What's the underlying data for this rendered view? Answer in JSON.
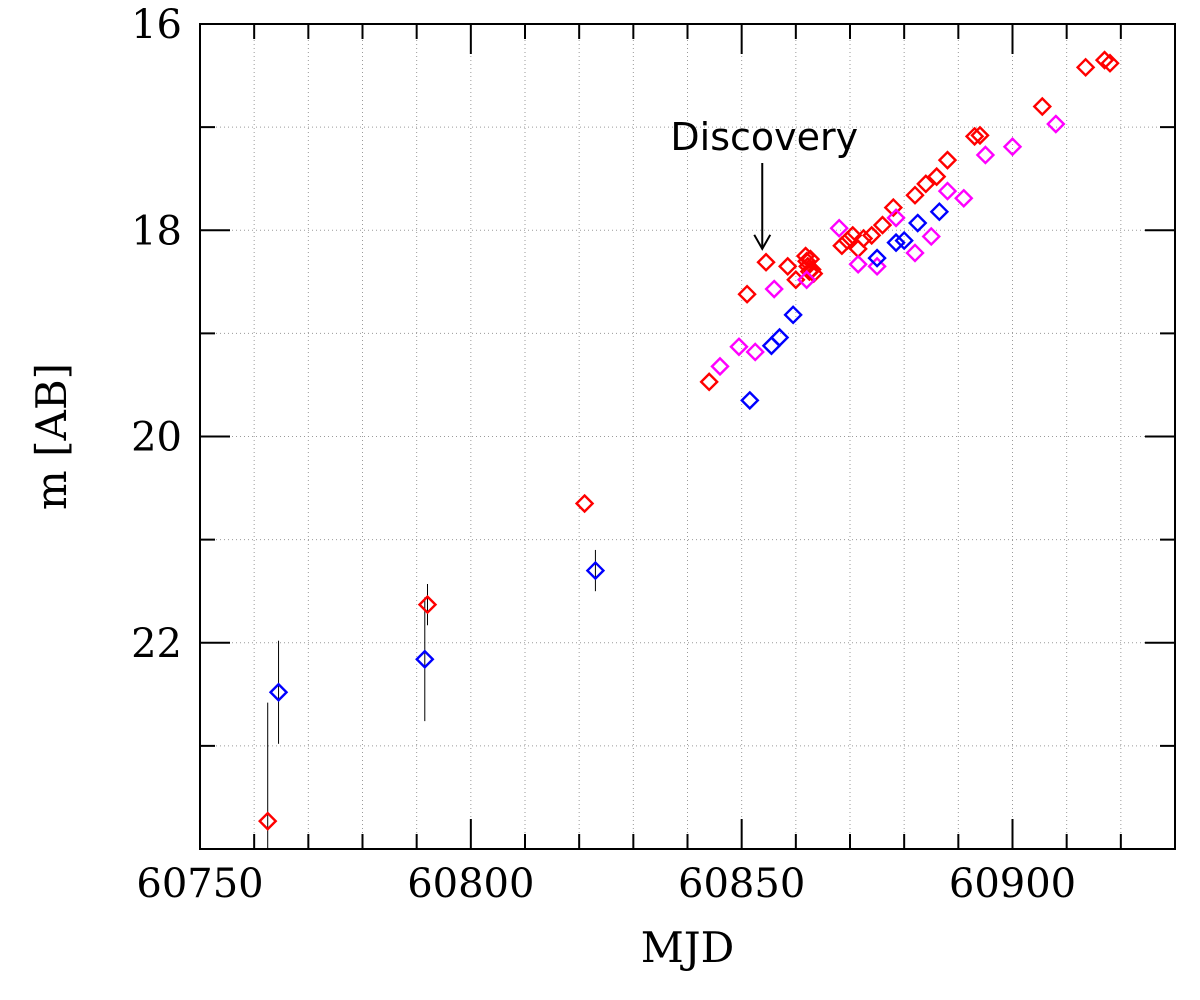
{
  "chart_data": {
    "type": "scatter",
    "title": "",
    "xlabel": "MJD",
    "ylabel": "m [AB]",
    "xlim": [
      60750,
      60930
    ],
    "ylim": [
      16,
      24
    ],
    "y_inverted": true,
    "grid": true,
    "x_ticks": [
      60750,
      60800,
      60850,
      60900
    ],
    "x_tick_labels": [
      "60750",
      "60800",
      "60850",
      "60900"
    ],
    "y_ticks": [
      16,
      18,
      20,
      22
    ],
    "y_tick_labels": [
      "16",
      "18",
      "20",
      "22"
    ],
    "annotations": [
      {
        "text": "Discovery",
        "x": 60853.8,
        "y": 18.18
      }
    ],
    "series": [
      {
        "name": "red",
        "color": "#ff0000",
        "marker": "diamond",
        "points": [
          {
            "x": 60762.5,
            "y": 23.73,
            "err": 1.15
          },
          {
            "x": 60792.0,
            "y": 21.63,
            "err": 0.2
          },
          {
            "x": 60821.0,
            "y": 20.65
          },
          {
            "x": 60844.0,
            "y": 19.47
          },
          {
            "x": 60851.0,
            "y": 18.62
          },
          {
            "x": 60854.5,
            "y": 18.31
          },
          {
            "x": 60858.5,
            "y": 18.35
          },
          {
            "x": 60860.0,
            "y": 18.48
          },
          {
            "x": 60861.8,
            "y": 18.25
          },
          {
            "x": 60862.0,
            "y": 18.3
          },
          {
            "x": 60862.2,
            "y": 18.35
          },
          {
            "x": 60862.5,
            "y": 18.4
          },
          {
            "x": 60862.7,
            "y": 18.28
          },
          {
            "x": 60863.0,
            "y": 18.38
          },
          {
            "x": 60863.3,
            "y": 18.42
          },
          {
            "x": 60868.5,
            "y": 18.15
          },
          {
            "x": 60869.5,
            "y": 18.1
          },
          {
            "x": 60870.5,
            "y": 18.05
          },
          {
            "x": 60871.5,
            "y": 18.18
          },
          {
            "x": 60872.5,
            "y": 18.08
          },
          {
            "x": 60874.0,
            "y": 18.05
          },
          {
            "x": 60876.0,
            "y": 17.95
          },
          {
            "x": 60878.0,
            "y": 17.78
          },
          {
            "x": 60882.0,
            "y": 17.66
          },
          {
            "x": 60884.0,
            "y": 17.55
          },
          {
            "x": 60886.0,
            "y": 17.48
          },
          {
            "x": 60888.0,
            "y": 17.32
          },
          {
            "x": 60893.0,
            "y": 17.09
          },
          {
            "x": 60894.0,
            "y": 17.08
          },
          {
            "x": 60905.5,
            "y": 16.8
          },
          {
            "x": 60913.5,
            "y": 16.42
          },
          {
            "x": 60917.0,
            "y": 16.35
          },
          {
            "x": 60918.0,
            "y": 16.38
          }
        ]
      },
      {
        "name": "magenta",
        "color": "#ff00ff",
        "marker": "diamond",
        "points": [
          {
            "x": 60846.0,
            "y": 19.32
          },
          {
            "x": 60849.5,
            "y": 19.13
          },
          {
            "x": 60852.5,
            "y": 19.18
          },
          {
            "x": 60856.0,
            "y": 18.57
          },
          {
            "x": 60862.0,
            "y": 18.48
          },
          {
            "x": 60868.0,
            "y": 17.98
          },
          {
            "x": 60871.5,
            "y": 18.33
          },
          {
            "x": 60875.0,
            "y": 18.35
          },
          {
            "x": 60878.5,
            "y": 17.88
          },
          {
            "x": 60882.0,
            "y": 18.22
          },
          {
            "x": 60885.0,
            "y": 18.06
          },
          {
            "x": 60888.0,
            "y": 17.62
          },
          {
            "x": 60891.0,
            "y": 17.69
          },
          {
            "x": 60895.0,
            "y": 17.27
          },
          {
            "x": 60900.0,
            "y": 17.19
          },
          {
            "x": 60908.0,
            "y": 16.97
          }
        ]
      },
      {
        "name": "blue",
        "color": "#0000ff",
        "marker": "diamond",
        "points": [
          {
            "x": 60764.5,
            "y": 22.48,
            "err": 0.5
          },
          {
            "x": 60791.5,
            "y": 22.16,
            "err": 0.6
          },
          {
            "x": 60823.0,
            "y": 21.3,
            "err": 0.2
          },
          {
            "x": 60851.5,
            "y": 19.65
          },
          {
            "x": 60855.5,
            "y": 19.12
          },
          {
            "x": 60857.0,
            "y": 19.04
          },
          {
            "x": 60859.5,
            "y": 18.82
          },
          {
            "x": 60875.0,
            "y": 18.27
          },
          {
            "x": 60878.5,
            "y": 18.12
          },
          {
            "x": 60880.0,
            "y": 18.1
          },
          {
            "x": 60882.5,
            "y": 17.93
          },
          {
            "x": 60886.5,
            "y": 17.82
          }
        ]
      }
    ]
  }
}
